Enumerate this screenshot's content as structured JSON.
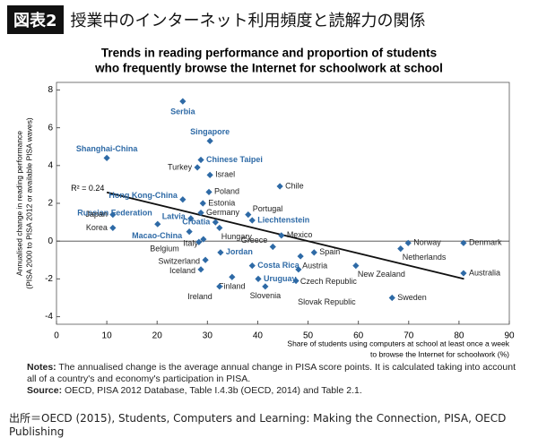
{
  "header": {
    "badge": "図表2",
    "title": "授業中のインターネット利用頻度と読解力の関係"
  },
  "chart_data": {
    "type": "scatter",
    "title": [
      "Trends in reading performance and proportion of students",
      "who frequently browse the Internet for schoolwork at school"
    ],
    "y_label": [
      "Annualised change in reading performance",
      "(PISA 2000 to PISA 2012 or available PISA waves)"
    ],
    "x_label": [
      "Share of students using computers at school at least once a week",
      "to browse the Internet for schoolwork (%)"
    ],
    "xlim": [
      0,
      90
    ],
    "ylim": [
      -4.4,
      8.4
    ],
    "xticks": [
      0,
      10,
      20,
      30,
      40,
      50,
      60,
      70,
      80,
      90
    ],
    "yticks": [
      -4,
      -2,
      0,
      2,
      4,
      6,
      8
    ],
    "marker_color": "#2e6aa6",
    "series": [
      {
        "color": "#2e6aa6",
        "labels": [
          "Serbia",
          "Singapore",
          "Shanghai-China",
          "Chinese Taipei",
          "Hong Kong-China",
          "Russian Federation",
          "Latvia",
          "Croatia",
          "Macao-China",
          "Liechtenstein",
          "Jordan",
          "Costa Rica",
          "Uruguay"
        ],
        "x": [
          25.1,
          30.5,
          10,
          28.7,
          25.1,
          20.1,
          26.7,
          31.6,
          26.4,
          38.9,
          32.6,
          38.9,
          40.1
        ],
        "y": [
          7.4,
          5.3,
          4.4,
          4.3,
          2.2,
          0.9,
          1.2,
          1.0,
          0.5,
          1.1,
          -0.6,
          -1.3,
          -2.0
        ]
      },
      {
        "color": "#222222",
        "labels": [
          "Turkey",
          "Israel",
          "Chile",
          "Poland",
          "Estonia",
          "Germany",
          "Portugal",
          "Japan",
          "Korea",
          "Hungary",
          "Mexico",
          "Italy",
          "Greece",
          "Belgium",
          "Spain",
          "Austria",
          "Switzerland",
          "Netherlands",
          "Norway",
          "Denmark",
          "Iceland",
          "New Zealand",
          "Australia",
          "Czech Republic",
          "Finland",
          "Slovak Republic",
          "Ireland",
          "Slovenia",
          "Sweden"
        ],
        "x": [
          28,
          30.5,
          44.4,
          30.3,
          29.1,
          28.7,
          38.1,
          11.2,
          11.2,
          32.4,
          44.7,
          29.2,
          43,
          28.3,
          51.2,
          48.5,
          29.6,
          68.4,
          69.9,
          80.9,
          28.7,
          59.5,
          80.9,
          48.1,
          34.9,
          47.6,
          32.4,
          41.5,
          66.7
        ],
        "y": [
          3.9,
          3.5,
          2.9,
          2.6,
          2.0,
          1.5,
          1.4,
          1.4,
          0.7,
          0.7,
          0.3,
          0.1,
          -0.3,
          -0.05,
          -0.6,
          -0.8,
          -1.0,
          -0.4,
          -0.1,
          -0.1,
          -1.5,
          -1.3,
          -1.7,
          -1.5,
          -1.9,
          -2.1,
          -2.4,
          -2.4,
          -3.0
        ]
      }
    ],
    "trend": {
      "x": [
        10,
        81
      ],
      "y": [
        2.58,
        -2.0
      ],
      "label": "R² = 0.24"
    }
  },
  "notes": {
    "label": "Notes:",
    "text": "The annualised change is the average annual change in PISA score points. It is calculated taking into account all of a country's and economy's participation in PISA."
  },
  "source": {
    "label": "Source:",
    "text": "OECD, PISA 2012 Database, Table I.4.3b (OECD, 2014) and Table 2.1."
  },
  "footer": "出所＝OECD (2015), Students, Computers and Learning: Making the Connection, PISA, OECD Publishing"
}
